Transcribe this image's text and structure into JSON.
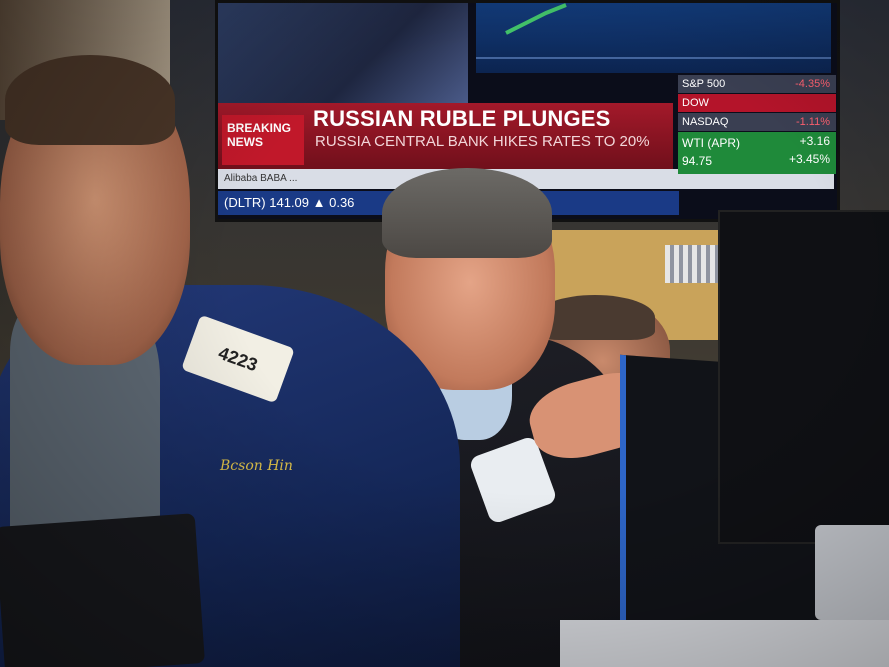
{
  "tv": {
    "breaking_label": "BREAKING NEWS",
    "headline": "RUSSIAN RUBLE PLUNGES",
    "subheadline": "RUSSIA CENTRAL BANK HIKES RATES TO 20%",
    "ticker": "Alibaba BABA ... ",
    "ticker_bottom": "(DLTR) 141.09 ▲ 0.36",
    "quotes": [
      {
        "label": "S&P 500",
        "value": "-4.35%",
        "color": "red"
      },
      {
        "label": "DOW",
        "value": "",
        "color": "red"
      },
      {
        "label": "NASDAQ",
        "value": "-1.11%",
        "color": "grey"
      }
    ],
    "wti_label": "WTI (APR)",
    "wti_price": "94.75",
    "wti_change": "+3.16",
    "wti_pct": "+3.45%"
  },
  "badge_number": "4223",
  "embroidered_name": "Bcson Hin"
}
